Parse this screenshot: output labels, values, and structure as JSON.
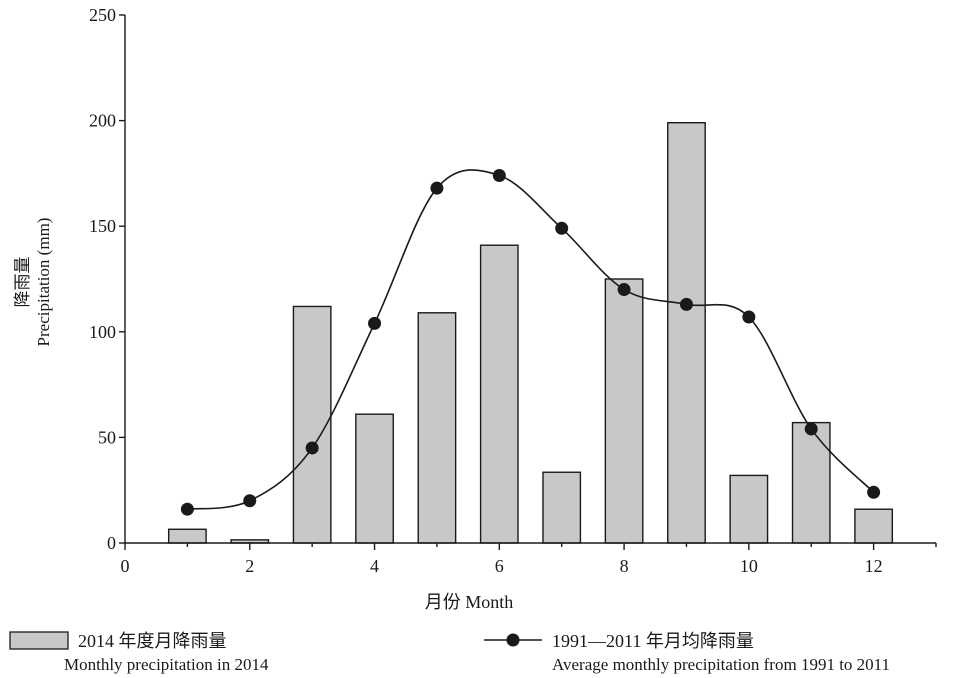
{
  "chart_data": {
    "type": "bar",
    "ylabel_cn": "降雨量",
    "ylabel_en": "Precipitation (mm)",
    "xlabel": "月份 Month",
    "xlim": [
      0,
      13
    ],
    "ylim": [
      0,
      250
    ],
    "x_ticks": [
      "0",
      "2",
      "4",
      "6",
      "8",
      "10",
      "12"
    ],
    "y_ticks": [
      "0",
      "50",
      "100",
      "150",
      "200",
      "250"
    ],
    "months": [
      1,
      2,
      3,
      4,
      5,
      6,
      7,
      8,
      9,
      10,
      11,
      12
    ],
    "series": [
      {
        "name": "2014 年度月降雨量",
        "name_en": "Monthly precipitation in 2014",
        "kind": "bar",
        "color": "#c8c8c8",
        "values": [
          6.5,
          1.5,
          112,
          61,
          109,
          141,
          33.5,
          125,
          199,
          32,
          57,
          16
        ]
      },
      {
        "name": "1991—2011 年月均降雨量",
        "name_en": "Average monthly precipitation from 1991 to 2011",
        "kind": "line",
        "color": "#1a1a1a",
        "values": [
          16,
          20,
          45,
          104,
          168,
          174,
          149,
          120,
          113,
          107,
          54,
          24
        ]
      }
    ],
    "legend_position": "bottom"
  }
}
